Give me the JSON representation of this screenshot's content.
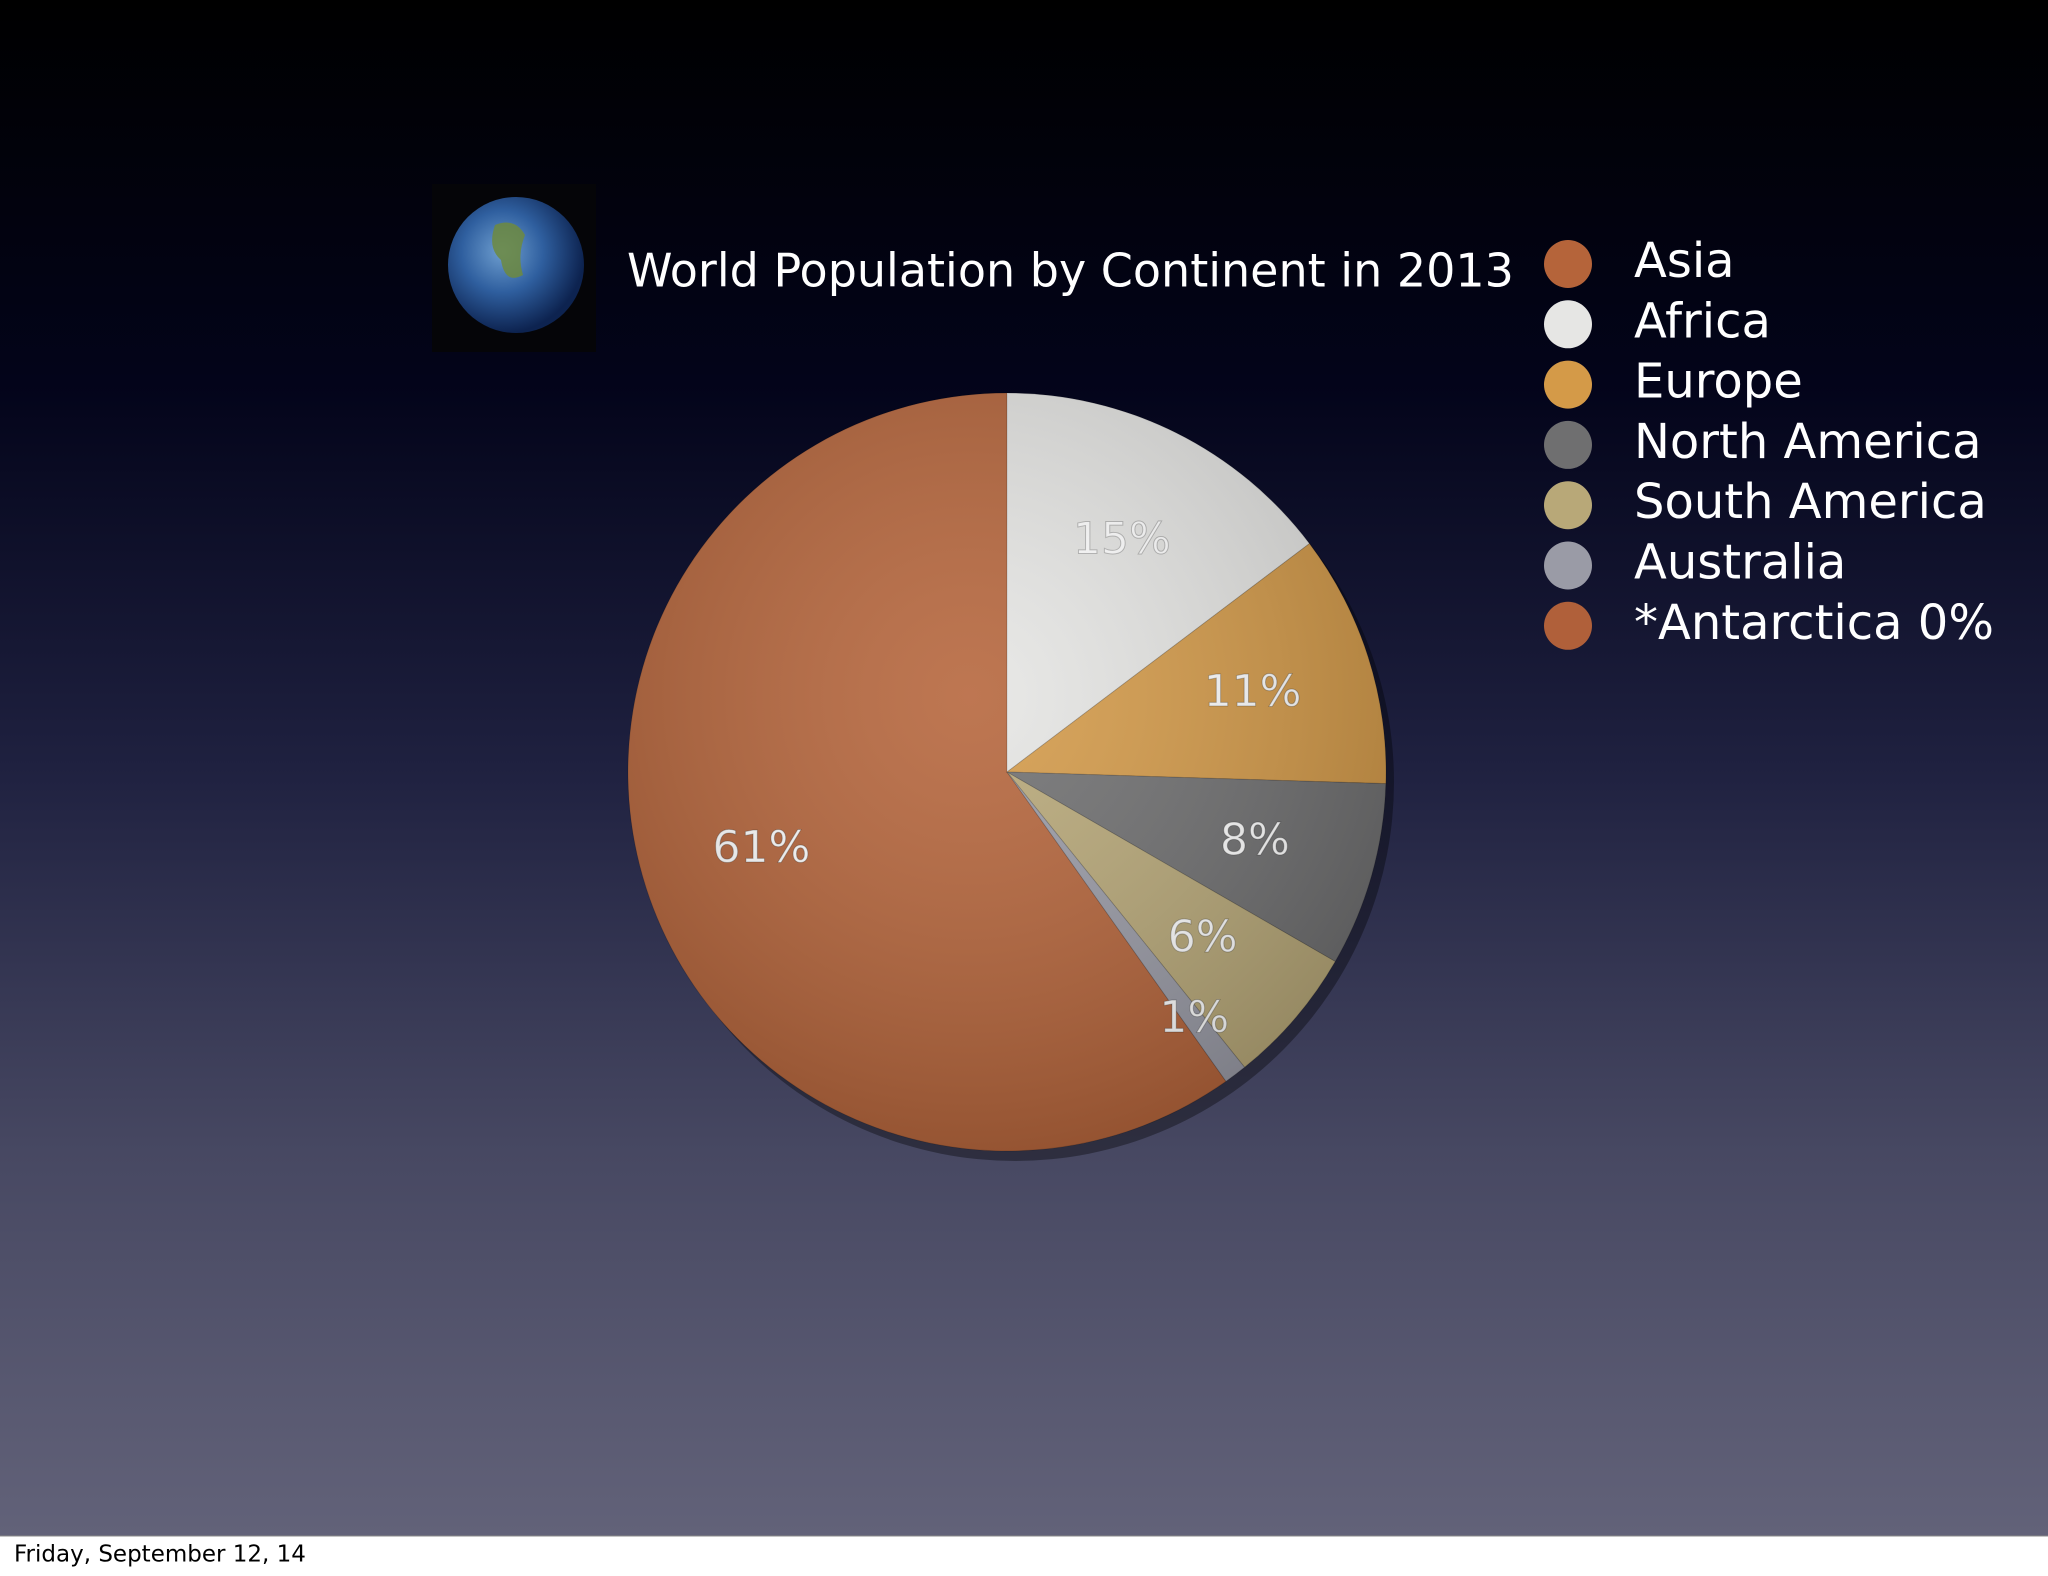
{
  "chart_data": {
    "type": "pie",
    "title": "World Population by Continent in 2013",
    "categories": [
      "Asia",
      "Africa",
      "Europe",
      "North America",
      "South America",
      "Australia",
      "*Antarctica 0%"
    ],
    "values": [
      61,
      15,
      11,
      8,
      6,
      1,
      0
    ],
    "value_labels": [
      "61%",
      "15%",
      "11%",
      "8%",
      "6%",
      "1%",
      null
    ],
    "colors": [
      "#b5643a",
      "#e6e6e4",
      "#d49a48",
      "#6f6f70",
      "#b8a878",
      "#9a9ba6",
      "#b0603a"
    ],
    "legend": "top-right"
  },
  "footer": "Friday, September 12, 14"
}
